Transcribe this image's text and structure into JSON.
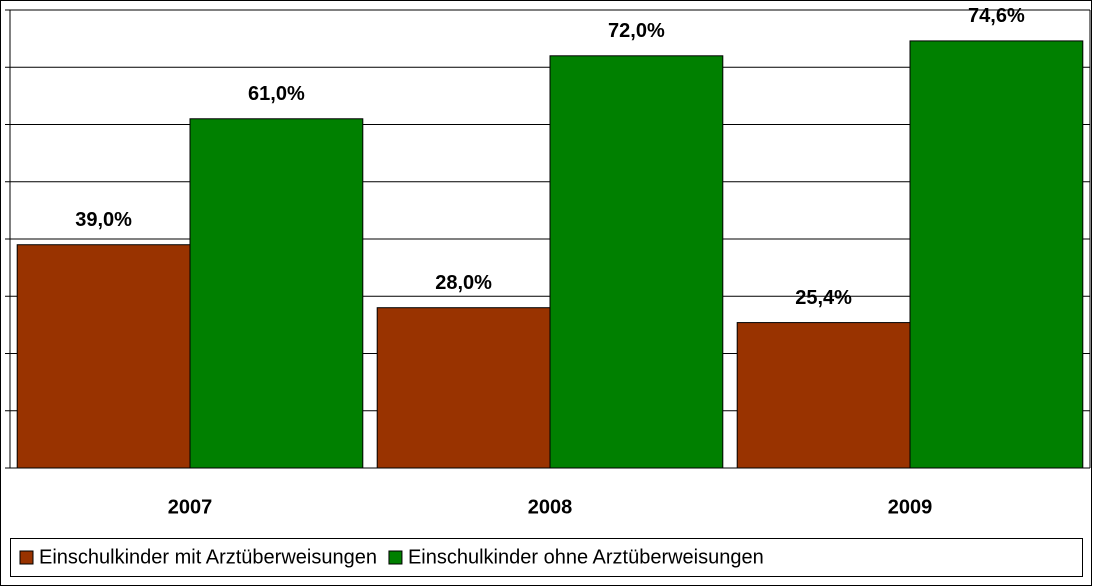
{
  "chart_data": {
    "type": "bar",
    "categories": [
      "2007",
      "2008",
      "2009"
    ],
    "series": [
      {
        "name": "Einschulkinder mit Arztüberweisungen",
        "color": "#993300",
        "values": [
          39.0,
          28.0,
          25.4
        ],
        "value_labels": [
          "39,0%",
          "28,0%",
          "25,4%"
        ]
      },
      {
        "name": "Einschulkinder ohne Arztüberweisungen",
        "color": "#008000",
        "values": [
          61.0,
          72.0,
          74.6
        ],
        "value_labels": [
          "61,0%",
          "72,0%",
          "74,6%"
        ]
      }
    ],
    "ylim": [
      0,
      80
    ],
    "yticks": [
      0,
      10,
      20,
      30,
      40,
      50,
      60,
      70,
      80
    ],
    "grid": true,
    "legend": "bottom"
  }
}
